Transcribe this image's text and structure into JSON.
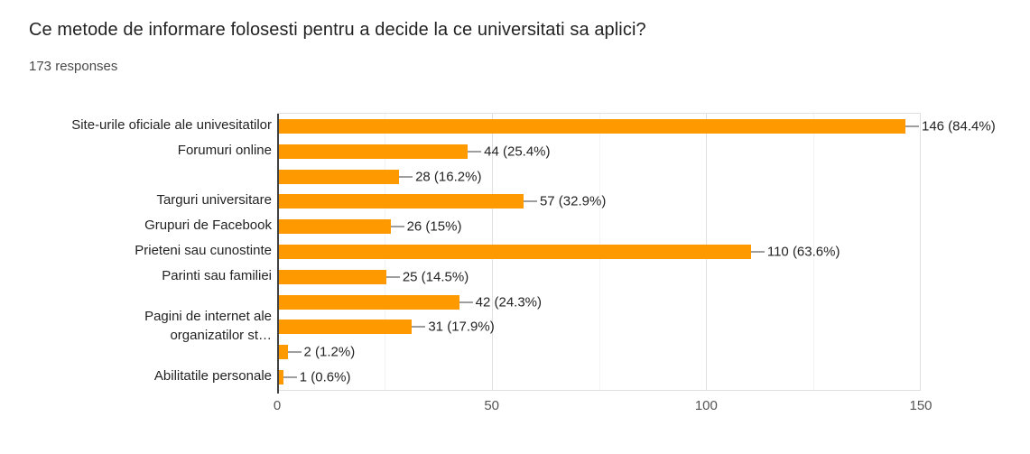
{
  "chart_data": {
    "type": "bar",
    "orientation": "horizontal",
    "title": "Ce metode de informare folosesti pentru a decide la ce universitati sa aplici?",
    "subtitle": "173 responses",
    "categories": [
      "Site-urile oficiale ale univesitatilor",
      "Forumuri online",
      "",
      "Targuri universitare",
      "Grupuri de Facebook",
      "Prieteni sau cunostinte",
      "Parinti sau familiei",
      "",
      "Pagini de internet ale\norganizatilor st…",
      "",
      "Abilitatile personale"
    ],
    "values": [
      146,
      44,
      28,
      57,
      26,
      110,
      25,
      42,
      31,
      2,
      1
    ],
    "value_labels": [
      "146 (84.4%)",
      "44 (25.4%)",
      "28 (16.2%)",
      "57 (32.9%)",
      "26 (15%)",
      "110 (63.6%)",
      "25 (14.5%)",
      "42 (24.3%)",
      "31 (17.9%)",
      "2 (1.2%)",
      "1 (0.6%)"
    ],
    "xlim": [
      0,
      150
    ],
    "xticks": [
      0,
      50,
      100,
      150
    ],
    "minor_xticks": [
      25,
      75,
      125
    ],
    "grid": true,
    "legend": "none",
    "bar_color": "#ff9900",
    "colors": {
      "axis_line": "#424242",
      "major_gridline": "#e0e0e0",
      "minor_gridline": "#f3f3f3",
      "connector": "#9e9e9e",
      "tick_label": "#555555"
    }
  }
}
